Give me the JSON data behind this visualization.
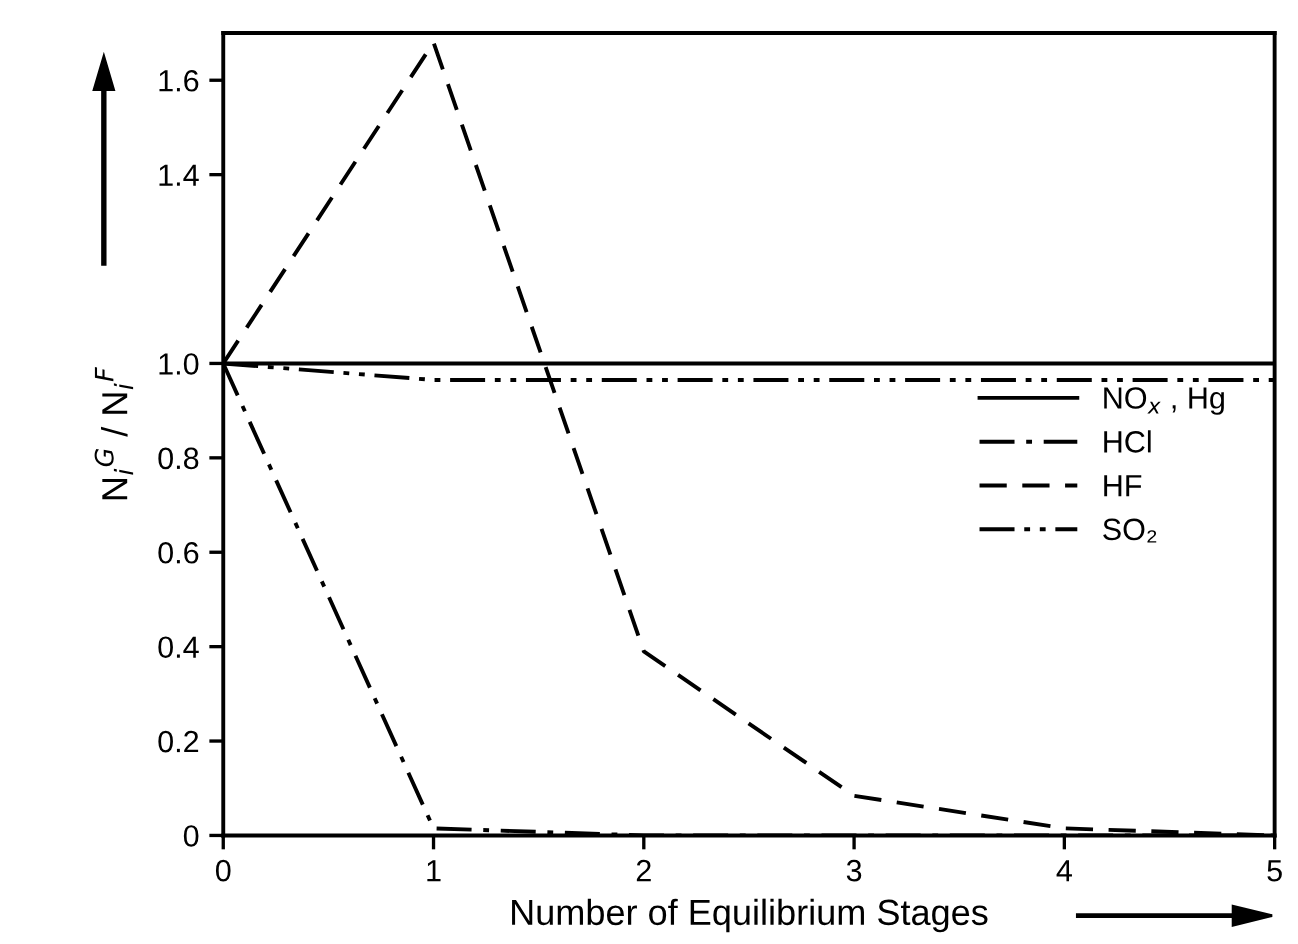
{
  "chart_data": {
    "type": "line",
    "xlabel": "Number of Equilibrium Stages",
    "ylabel": "N$_{i}$$^{G}$ / N$_{i}$$^{F}$",
    "x": [
      0,
      1,
      2,
      3,
      4,
      5
    ],
    "series": [
      {
        "name": "NO$_{x}$ , Hg",
        "color": "#000000",
        "line_style": "solid",
        "values": [
          1.0,
          1.0,
          1.0,
          1.0,
          1.0,
          1.0
        ]
      },
      {
        "name": "HCl",
        "color": "#000000",
        "line_style": "dashdot",
        "values": [
          1.0,
          0.015,
          0.0,
          0.0,
          0.0,
          0.0
        ]
      },
      {
        "name": "HF",
        "color": "#000000",
        "line_style": "dashed",
        "values": [
          1.0,
          1.68,
          0.39,
          0.084,
          0.015,
          0.0
        ]
      },
      {
        "name": "SO₂",
        "color": "#000000",
        "line_style": "dashdotdot",
        "values": [
          1.0,
          0.965,
          0.965,
          0.965,
          0.965,
          0.965
        ]
      }
    ],
    "xlim": [
      0,
      5
    ],
    "xticks": [
      0,
      1,
      2,
      3,
      4,
      5
    ],
    "ylim": [
      0,
      1.7
    ],
    "yticks": [
      0,
      0.2,
      0.4,
      0.6,
      0.8,
      {
        "value": 1.0,
        "label": "1.0"
      },
      1.4,
      1.6
    ],
    "legend": "right",
    "grid": false,
    "marker": "none"
  }
}
